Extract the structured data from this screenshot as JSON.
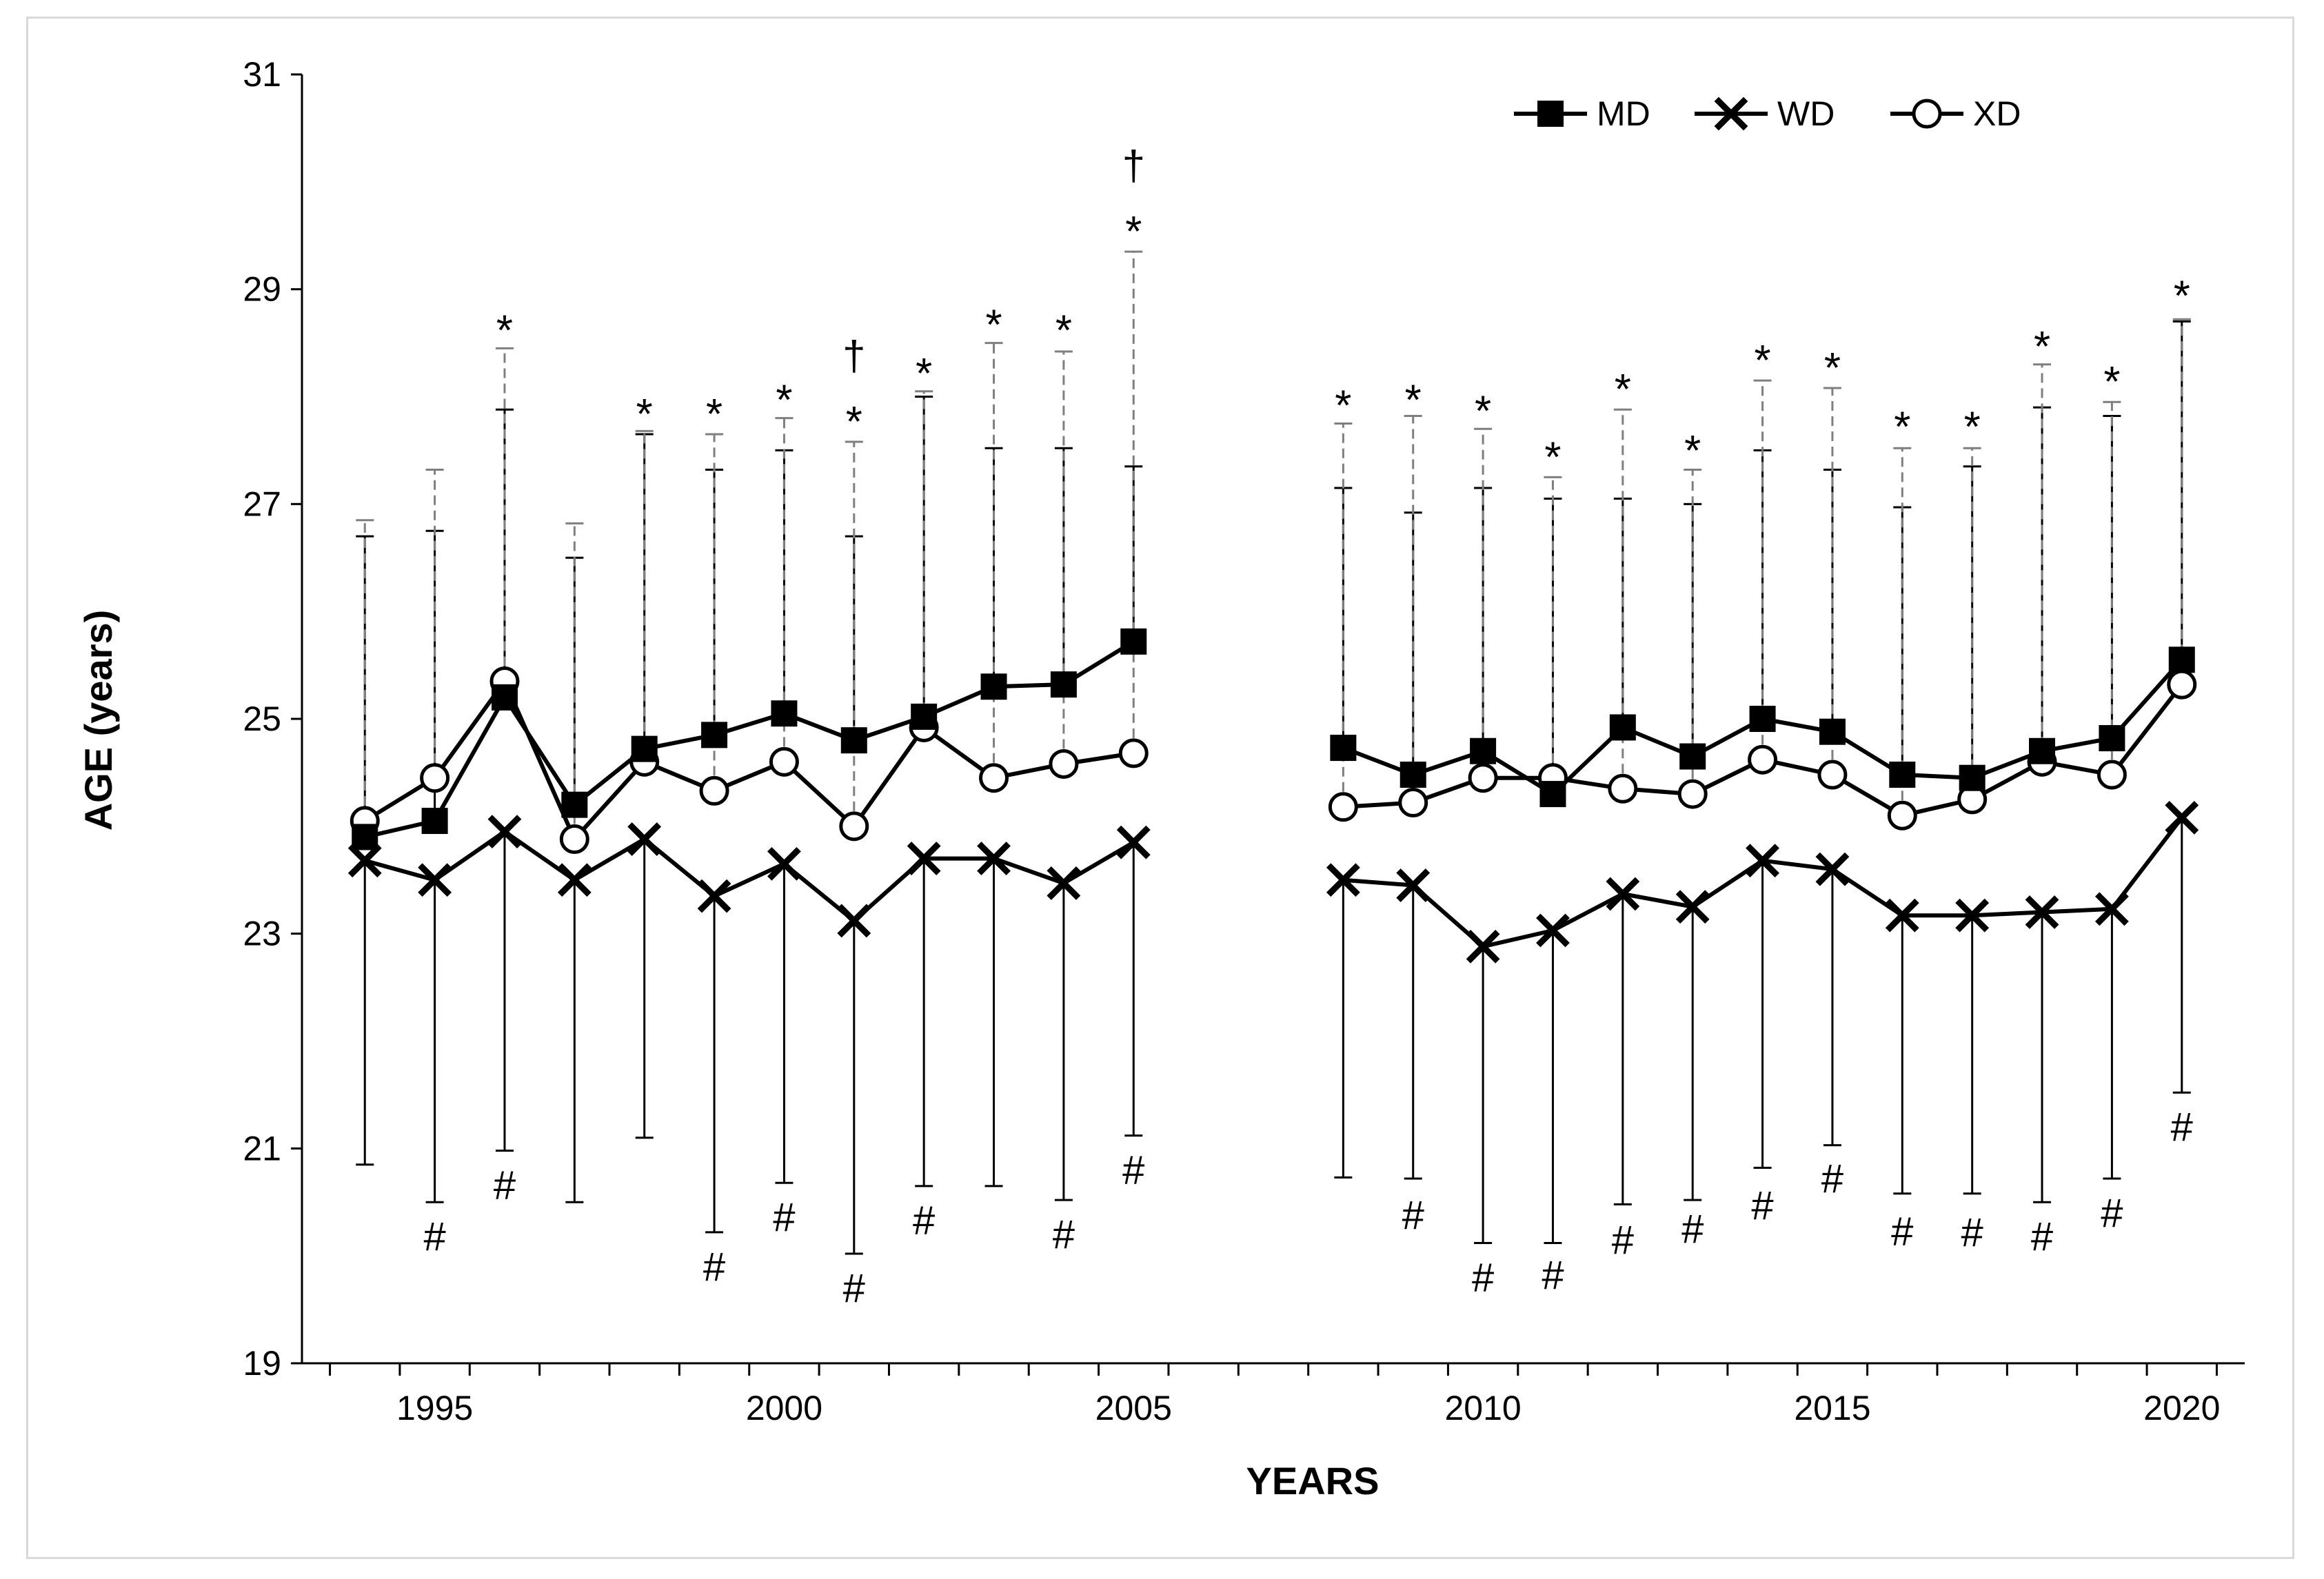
{
  "chart_data": {
    "type": "line",
    "title": "",
    "xlabel": "YEARS",
    "ylabel": "AGE (years)",
    "ylim": [
      19,
      31
    ],
    "xlim": [
      1993.1,
      2020.9
    ],
    "y_ticks": [
      19,
      21,
      23,
      25,
      27,
      29,
      31
    ],
    "x_ticks": [
      1995,
      2000,
      2005,
      2010,
      2015,
      2020
    ],
    "grid": false,
    "legend_position": "top-right",
    "legend": [
      {
        "key": "MD",
        "label": "MD",
        "marker": "square"
      },
      {
        "key": "WD",
        "label": "WD",
        "marker": "x"
      },
      {
        "key": "XD",
        "label": "XD",
        "marker": "circle"
      }
    ],
    "segments": [
      {
        "x": [
          1994,
          1995,
          1996,
          1997,
          1998,
          1999,
          2000,
          2001,
          2002,
          2003,
          2004,
          2005
        ]
      },
      {
        "x": [
          2008,
          2009,
          2010,
          2011,
          2012,
          2013,
          2014,
          2015,
          2016,
          2017,
          2018,
          2019,
          2020
        ]
      }
    ],
    "series": [
      {
        "name": "MD",
        "marker": "square",
        "values": [
          23.9,
          24.05,
          25.2,
          24.2,
          24.72,
          24.85,
          25.05,
          24.8,
          25.02,
          25.3,
          25.32,
          25.72,
          null,
          null,
          24.73,
          24.48,
          24.7,
          24.3,
          24.92,
          24.65,
          25.0,
          24.88,
          24.48,
          24.45,
          24.7,
          24.82,
          25.55
        ],
        "upper": [
          26.7,
          26.75,
          27.88,
          26.5,
          27.65,
          27.32,
          27.5,
          26.7,
          28.0,
          27.52,
          27.52,
          27.35,
          null,
          null,
          27.15,
          26.92,
          27.15,
          27.05,
          27.05,
          27.0,
          27.5,
          27.32,
          26.97,
          27.35,
          27.9,
          27.82,
          28.7
        ],
        "lower": null
      },
      {
        "name": "WD",
        "marker": "x",
        "values": [
          23.68,
          23.5,
          23.95,
          23.5,
          23.88,
          23.35,
          23.65,
          23.12,
          23.7,
          23.7,
          23.47,
          23.85,
          null,
          null,
          23.5,
          23.45,
          22.88,
          23.03,
          23.37,
          23.25,
          23.68,
          23.6,
          23.17,
          23.17,
          23.2,
          23.23,
          24.08
        ],
        "upper": null,
        "lower": [
          20.85,
          20.5,
          20.98,
          20.5,
          21.1,
          20.22,
          20.68,
          20.02,
          20.65,
          20.65,
          20.52,
          21.12,
          null,
          null,
          20.73,
          20.72,
          20.12,
          20.12,
          20.48,
          20.52,
          20.82,
          21.03,
          20.58,
          20.58,
          20.5,
          20.72,
          21.52
        ]
      },
      {
        "name": "XD",
        "marker": "circle",
        "values": [
          24.05,
          24.45,
          25.35,
          23.88,
          24.6,
          24.33,
          24.6,
          24.0,
          24.92,
          24.45,
          24.58,
          24.68,
          null,
          null,
          24.18,
          24.22,
          24.45,
          24.45,
          24.35,
          24.3,
          24.62,
          24.48,
          24.1,
          24.25,
          24.6,
          24.48,
          25.32
        ],
        "upper": [
          26.85,
          27.32,
          28.45,
          26.82,
          27.68,
          27.65,
          27.8,
          27.58,
          28.05,
          28.5,
          28.42,
          29.35,
          null,
          null,
          27.75,
          27.82,
          27.7,
          27.25,
          27.88,
          27.32,
          28.15,
          28.08,
          27.52,
          27.52,
          28.3,
          27.95,
          28.72
        ],
        "lower": null
      }
    ],
    "annotations": [
      {
        "text": "#",
        "x": 1995,
        "y": 20.18
      },
      {
        "text": "#",
        "x": 1996,
        "y": 20.66
      },
      {
        "text": "#",
        "x": 1999,
        "y": 19.9
      },
      {
        "text": "#",
        "x": 2000,
        "y": 20.36
      },
      {
        "text": "#",
        "x": 2001,
        "y": 19.7
      },
      {
        "text": "#",
        "x": 2002,
        "y": 20.33
      },
      {
        "text": "#",
        "x": 2004,
        "y": 20.2
      },
      {
        "text": "#",
        "x": 2005,
        "y": 20.8
      },
      {
        "text": "#",
        "x": 2009,
        "y": 20.38
      },
      {
        "text": "#",
        "x": 2010,
        "y": 19.8
      },
      {
        "text": "#",
        "x": 2011,
        "y": 19.82
      },
      {
        "text": "#",
        "x": 2012,
        "y": 20.15
      },
      {
        "text": "#",
        "x": 2013,
        "y": 20.25
      },
      {
        "text": "#",
        "x": 2014,
        "y": 20.47
      },
      {
        "text": "#",
        "x": 2015,
        "y": 20.72
      },
      {
        "text": "#",
        "x": 2016,
        "y": 20.23
      },
      {
        "text": "#",
        "x": 2017,
        "y": 20.22
      },
      {
        "text": "#",
        "x": 2018,
        "y": 20.18
      },
      {
        "text": "#",
        "x": 2019,
        "y": 20.4
      },
      {
        "text": "#",
        "x": 2020,
        "y": 21.2
      },
      {
        "text": "*",
        "x": 1996,
        "y": 28.7
      },
      {
        "text": "*",
        "x": 1998,
        "y": 27.92
      },
      {
        "text": "*",
        "x": 1999,
        "y": 27.92
      },
      {
        "text": "*",
        "x": 2000,
        "y": 28.05
      },
      {
        "text": "*",
        "x": 2001,
        "y": 27.85
      },
      {
        "text": "*",
        "x": 2002,
        "y": 28.3
      },
      {
        "text": "*",
        "x": 2003,
        "y": 28.75
      },
      {
        "text": "*",
        "x": 2004,
        "y": 28.7
      },
      {
        "text": "*",
        "x": 2005,
        "y": 29.62
      },
      {
        "text": "*",
        "x": 2008,
        "y": 28.0
      },
      {
        "text": "*",
        "x": 2009,
        "y": 28.05
      },
      {
        "text": "*",
        "x": 2010,
        "y": 27.95
      },
      {
        "text": "*",
        "x": 2011,
        "y": 27.52
      },
      {
        "text": "*",
        "x": 2012,
        "y": 28.15
      },
      {
        "text": "*",
        "x": 2013,
        "y": 27.58
      },
      {
        "text": "*",
        "x": 2014,
        "y": 28.42
      },
      {
        "text": "*",
        "x": 2015,
        "y": 28.35
      },
      {
        "text": "*",
        "x": 2016,
        "y": 27.8
      },
      {
        "text": "*",
        "x": 2017,
        "y": 27.8
      },
      {
        "text": "*",
        "x": 2018,
        "y": 28.55
      },
      {
        "text": "*",
        "x": 2019,
        "y": 28.22
      },
      {
        "text": "*",
        "x": 2020,
        "y": 29.02
      },
      {
        "text": "†",
        "x": 2001,
        "y": 28.38
      },
      {
        "text": "†",
        "x": 2005,
        "y": 30.15
      }
    ]
  },
  "colors": {
    "line": "#000000",
    "solid_error_bar": "#000000",
    "dashed_error_bar": "#7f7f7f",
    "marker_fill_open": "#ffffff",
    "frame_border": "#d9d9d9"
  }
}
